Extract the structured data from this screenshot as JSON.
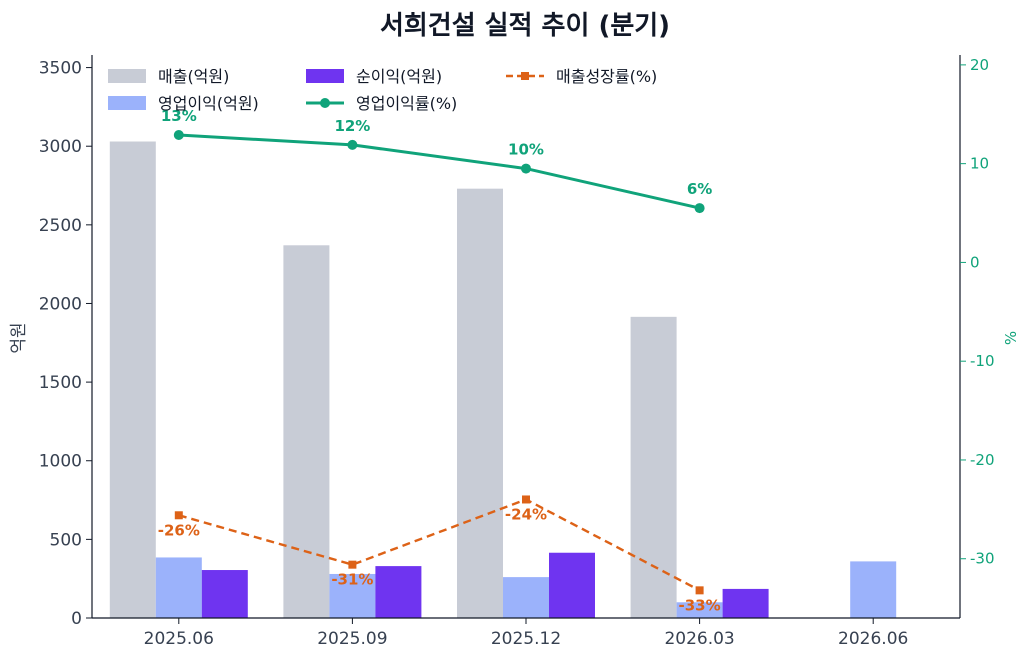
{
  "chart_data": {
    "type": "bar",
    "title": "서희건설 실적 추이 (분기)",
    "ylabel": "억원",
    "y2label": "%",
    "categories": [
      "2025.06",
      "2025.09",
      "2025.12",
      "2026.03",
      "2026.06"
    ],
    "ylim": [
      0,
      3580
    ],
    "yticks": [
      0,
      500,
      1000,
      1500,
      2000,
      2500,
      3000,
      3500
    ],
    "y2lim": [
      -36,
      21
    ],
    "y2ticks": [
      -30,
      -20,
      -10,
      0,
      10,
      20
    ],
    "legend_position": "top-left",
    "series": [
      {
        "name": "매출(억원)",
        "kind": "bar",
        "axis": "left",
        "color": "#c8ccd6",
        "values": [
          3030,
          2370,
          2730,
          1915,
          null
        ]
      },
      {
        "name": "영업이익(억원)",
        "kind": "bar",
        "axis": "left",
        "color": "#9bb2fb",
        "values": [
          385,
          280,
          260,
          100,
          360
        ]
      },
      {
        "name": "순이익(억원)",
        "kind": "bar",
        "axis": "left",
        "color": "#6f34f0",
        "values": [
          305,
          330,
          415,
          185,
          null
        ]
      },
      {
        "name": "영업이익률(%)",
        "kind": "line",
        "axis": "right",
        "color": "#10a37a",
        "style": "solid-circle",
        "values": [
          12.9,
          11.9,
          9.5,
          5.5,
          null
        ],
        "labels": [
          "13%",
          "12%",
          "10%",
          "6%",
          ""
        ]
      },
      {
        "name": "매출성장률(%)",
        "kind": "line",
        "axis": "right",
        "color": "#dd6217",
        "style": "dashed-square",
        "values": [
          -25.6,
          -30.6,
          -24.0,
          -33.2,
          null
        ],
        "labels": [
          "-26%",
          "-31%",
          "-24%",
          "-33%",
          ""
        ]
      }
    ]
  }
}
